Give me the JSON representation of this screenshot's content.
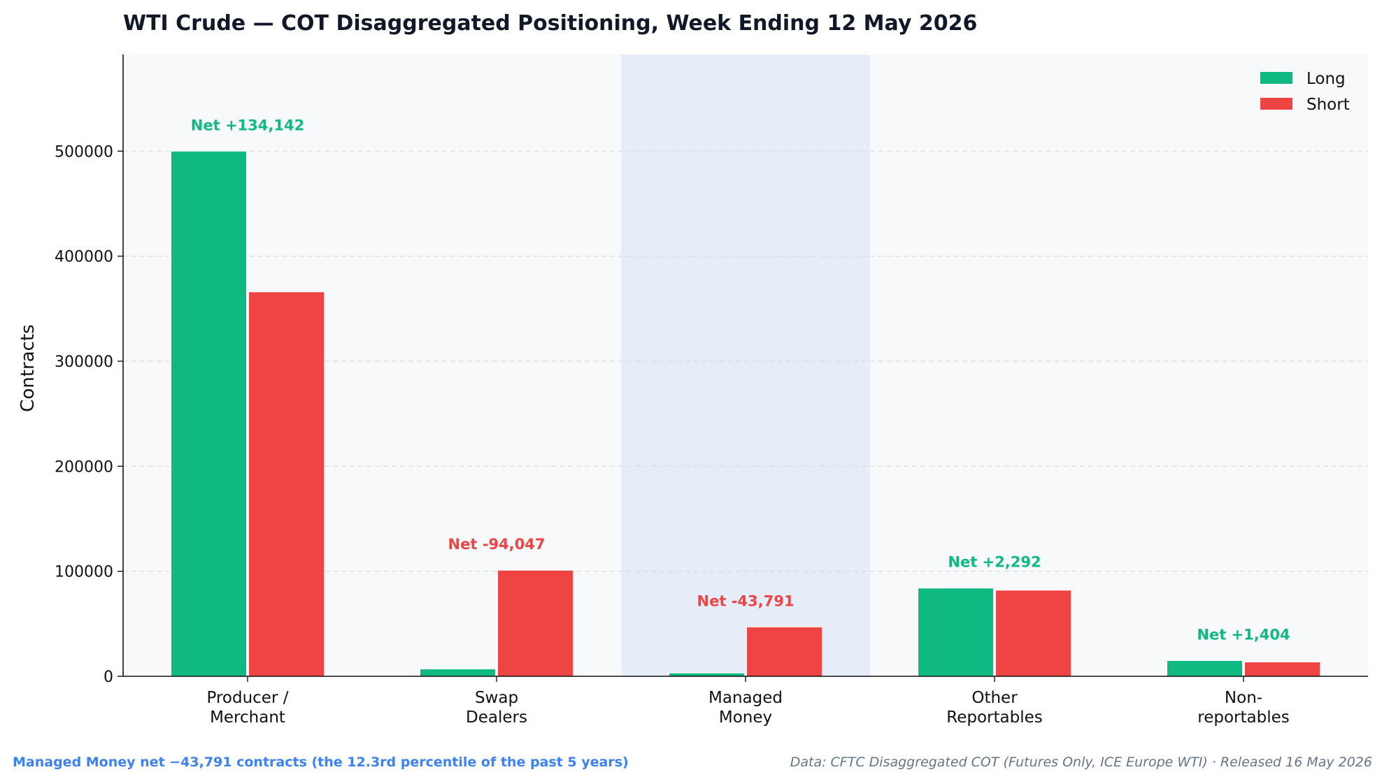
{
  "chart_data": {
    "type": "bar",
    "title": "WTI Crude — COT Disaggregated Positioning, Week Ending 12 May 2026",
    "ylabel": "Contracts",
    "xlabel": "",
    "ylim": [
      0,
      592000
    ],
    "yticks": [
      0,
      100000,
      200000,
      300000,
      400000,
      500000
    ],
    "ytick_labels": [
      "0",
      "100000",
      "200000",
      "300000",
      "400000",
      "500000"
    ],
    "grid": "horizontal dashed",
    "legend_position": "top-right",
    "highlight_category": "Managed Money",
    "categories": [
      [
        "Producer /",
        "Merchant"
      ],
      [
        "Swap",
        "Dealers"
      ],
      [
        "Managed",
        "Money"
      ],
      [
        "Other",
        "Reportables"
      ],
      [
        "Non-",
        "reportables"
      ]
    ],
    "series": [
      {
        "name": "Long",
        "color": "#10b981",
        "values": [
          500000,
          7000,
          3200,
          84000,
          15000
        ]
      },
      {
        "name": "Short",
        "color": "#ef4444",
        "values": [
          366000,
          101000,
          47000,
          82000,
          13600
        ]
      }
    ],
    "net_labels": [
      "Net +134,142",
      "Net -94,047",
      "Net -43,791",
      "Net +2,292",
      "Net +1,404"
    ],
    "net_colors": [
      "#10b981",
      "#ef4444",
      "#ef4444",
      "#10b981",
      "#10b981"
    ]
  },
  "footnotes": {
    "left": "Managed Money net −43,791 contracts (the 12.3rd percentile of the past 5 years)",
    "right": "Data: CFTC Disaggregated COT (Futures Only, ICE Europe WTI) · Released 16 May 2026"
  },
  "colors": {
    "plot_background": "#f8f9fb",
    "highlight_band": "#e6ecf8",
    "grid": "#d9dde3",
    "axis": "#111111"
  }
}
